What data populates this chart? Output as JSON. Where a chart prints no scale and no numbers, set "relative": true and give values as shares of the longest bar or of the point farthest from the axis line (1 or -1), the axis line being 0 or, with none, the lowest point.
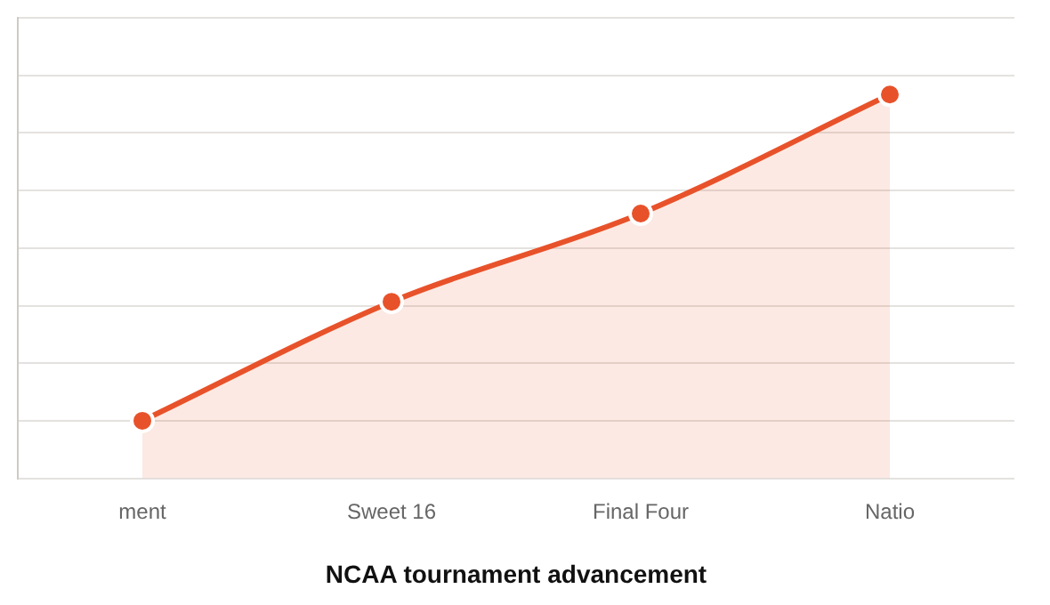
{
  "chart_data": {
    "type": "area",
    "xlabel": "NCAA tournament advancement",
    "categories": [
      "ment",
      "Sweet 16",
      "Final Four",
      "Natio"
    ],
    "relative": true,
    "grid": "y",
    "marker": "circle",
    "legend": false,
    "tick_labels": "x",
    "series": [
      {
        "color": "#e8522a",
        "values": [
          0.15,
          0.46,
          0.69,
          1
        ]
      }
    ]
  }
}
